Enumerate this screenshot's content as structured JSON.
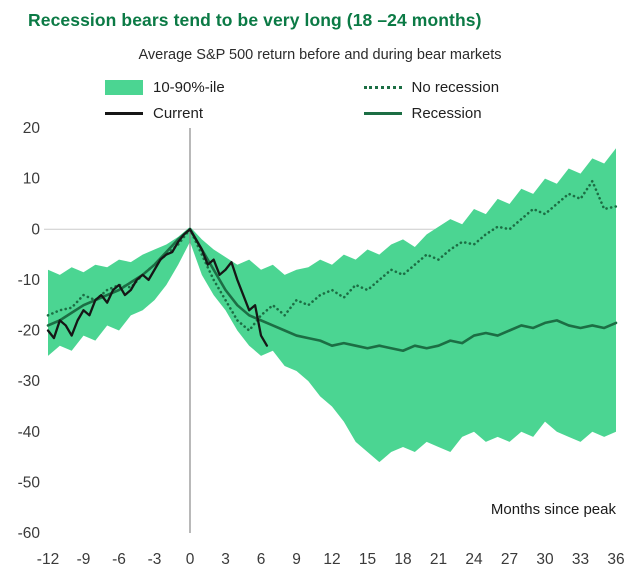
{
  "header": {
    "title": "Recession bears tend to be very long (18 –24 months)",
    "subtitle": "Average S&P 500 return before and during bear markets"
  },
  "legend": {
    "rows": [
      [
        {
          "label": "10-90%-ile",
          "swatch": "band",
          "color_key": "band"
        },
        {
          "label": "No recession",
          "swatch": "dotted",
          "color_key": "no_recession"
        }
      ],
      [
        {
          "label": "Current",
          "swatch": "solid",
          "color_key": "current"
        },
        {
          "label": "Recession",
          "swatch": "solid",
          "color_key": "recession"
        }
      ]
    ]
  },
  "chart_data": {
    "type": "line",
    "title": "Recession bears tend to be very long (18 –24 months)",
    "subtitle": "Average S&P 500 return before and during bear markets",
    "xlabel": "Months since peak",
    "ylabel": "",
    "xlim": [
      -12,
      36
    ],
    "ylim": [
      -60,
      20
    ],
    "x_ticks": [
      -12,
      -9,
      -6,
      -3,
      0,
      3,
      6,
      9,
      12,
      15,
      18,
      21,
      24,
      27,
      30,
      33,
      36
    ],
    "y_ticks": [
      20,
      10,
      0,
      -10,
      -20,
      -30,
      -40,
      -50,
      -60
    ],
    "grid": "zero-lines-only",
    "legend_position": "top",
    "colors": {
      "title": "#0b7a45",
      "band": "#4bd592",
      "current": "#161616",
      "no_recession": "#1c6e44",
      "recession": "#1c6e44",
      "axis_text": "#3a3a3a",
      "zero_line": "#cccccc",
      "peak_line": "#8a8a8a"
    },
    "band": {
      "name": "10-90%-ile",
      "x": [
        -12,
        -11,
        -10,
        -9,
        -8,
        -7,
        -6,
        -5,
        -4,
        -3,
        -2,
        -1,
        0,
        1,
        2,
        3,
        4,
        5,
        6,
        7,
        8,
        9,
        10,
        11,
        12,
        13,
        14,
        15,
        16,
        17,
        18,
        19,
        20,
        21,
        22,
        23,
        24,
        25,
        26,
        27,
        28,
        29,
        30,
        31,
        32,
        33,
        34,
        35,
        36
      ],
      "upper": [
        -8,
        -9,
        -7.5,
        -8.5,
        -7,
        -7.5,
        -6,
        -6.5,
        -5,
        -4,
        -3,
        -1.5,
        0.5,
        -2,
        -4,
        -5.5,
        -7,
        -6,
        -8,
        -7,
        -9,
        -8,
        -7.5,
        -6,
        -7,
        -5,
        -6,
        -4,
        -5,
        -3,
        -2,
        -3.5,
        -1,
        0.5,
        2,
        1,
        4,
        3,
        6,
        5,
        8,
        7,
        10,
        9,
        12,
        11,
        14,
        13,
        16
      ],
      "lower": [
        -25,
        -23,
        -24,
        -21,
        -22,
        -19,
        -20,
        -17,
        -16,
        -14,
        -11,
        -7,
        -2.5,
        -9,
        -13,
        -16,
        -20,
        -23,
        -25,
        -24,
        -27,
        -28,
        -30,
        -33,
        -35,
        -38,
        -42,
        -44,
        -46,
        -44,
        -43,
        -44,
        -42,
        -43,
        -44,
        -41,
        -40,
        -42,
        -41,
        -42,
        -40,
        -41,
        -38,
        -40,
        -41,
        -42,
        -40,
        -41,
        -40
      ]
    },
    "series": [
      {
        "name": "No recession",
        "style": "dotted",
        "color_key": "no_recession",
        "x": [
          -12,
          -11,
          -10,
          -9,
          -8,
          -7,
          -6,
          -5,
          -4,
          -3,
          -2,
          -1,
          0,
          1,
          2,
          3,
          4,
          5,
          6,
          7,
          8,
          9,
          10,
          11,
          12,
          13,
          14,
          15,
          16,
          17,
          18,
          19,
          20,
          21,
          22,
          23,
          24,
          25,
          26,
          27,
          28,
          29,
          30,
          31,
          32,
          33,
          34,
          35,
          36
        ],
        "y": [
          -17,
          -16,
          -15.5,
          -13,
          -14,
          -12,
          -11,
          -11.5,
          -9,
          -7,
          -5,
          -3,
          0,
          -5,
          -10,
          -14,
          -18,
          -20,
          -17,
          -15,
          -17,
          -14,
          -15,
          -13,
          -12,
          -13.5,
          -11,
          -12,
          -10,
          -8,
          -9,
          -7,
          -5,
          -6,
          -4,
          -2.5,
          -3,
          -1,
          0.5,
          0,
          2,
          4,
          3,
          5,
          7,
          6,
          9.5,
          4,
          4.5
        ]
      },
      {
        "name": "Recession",
        "style": "solid",
        "color_key": "recession",
        "x": [
          -12,
          -11,
          -10,
          -9,
          -8,
          -7,
          -6,
          -5,
          -4,
          -3,
          -2,
          -1,
          0,
          1,
          2,
          3,
          4,
          5,
          6,
          7,
          8,
          9,
          10,
          11,
          12,
          13,
          14,
          15,
          16,
          17,
          18,
          19,
          20,
          21,
          22,
          23,
          24,
          25,
          26,
          27,
          28,
          29,
          30,
          31,
          32,
          33,
          34,
          35,
          36
        ],
        "y": [
          -19,
          -18,
          -16.5,
          -15,
          -14,
          -13,
          -12,
          -10.5,
          -9,
          -7,
          -4.5,
          -2,
          0,
          -4,
          -8,
          -12,
          -15,
          -17,
          -18,
          -19,
          -20,
          -21,
          -21.5,
          -22,
          -23,
          -22.5,
          -23,
          -23.5,
          -23,
          -23.5,
          -24,
          -23,
          -23.5,
          -23,
          -22,
          -22.5,
          -21,
          -20.5,
          -21,
          -20,
          -19,
          -19.5,
          -18.5,
          -18,
          -19,
          -19.5,
          -19,
          -19.5,
          -18.5
        ]
      },
      {
        "name": "Current",
        "style": "solid",
        "color_key": "current",
        "x": [
          -12,
          -11.5,
          -11,
          -10.5,
          -10,
          -9.5,
          -9,
          -8.5,
          -8,
          -7.5,
          -7,
          -6.5,
          -6,
          -5.5,
          -5,
          -4.5,
          -4,
          -3.5,
          -3,
          -2.5,
          -2,
          -1.5,
          -1,
          -0.5,
          0,
          0.5,
          1,
          1.5,
          2,
          2.5,
          3,
          3.5,
          4,
          4.5,
          5,
          5.5,
          6,
          6.5
        ],
        "y": [
          -20,
          -21.5,
          -18,
          -19,
          -21,
          -18,
          -16,
          -17,
          -14,
          -13,
          -14.5,
          -12,
          -11,
          -13,
          -12,
          -10,
          -9,
          -10,
          -8,
          -6,
          -5,
          -4.5,
          -2.5,
          -1,
          0,
          -2,
          -4,
          -7,
          -6,
          -9,
          -8,
          -6.5,
          -10,
          -13,
          -16,
          -15,
          -21,
          -23
        ]
      }
    ]
  }
}
